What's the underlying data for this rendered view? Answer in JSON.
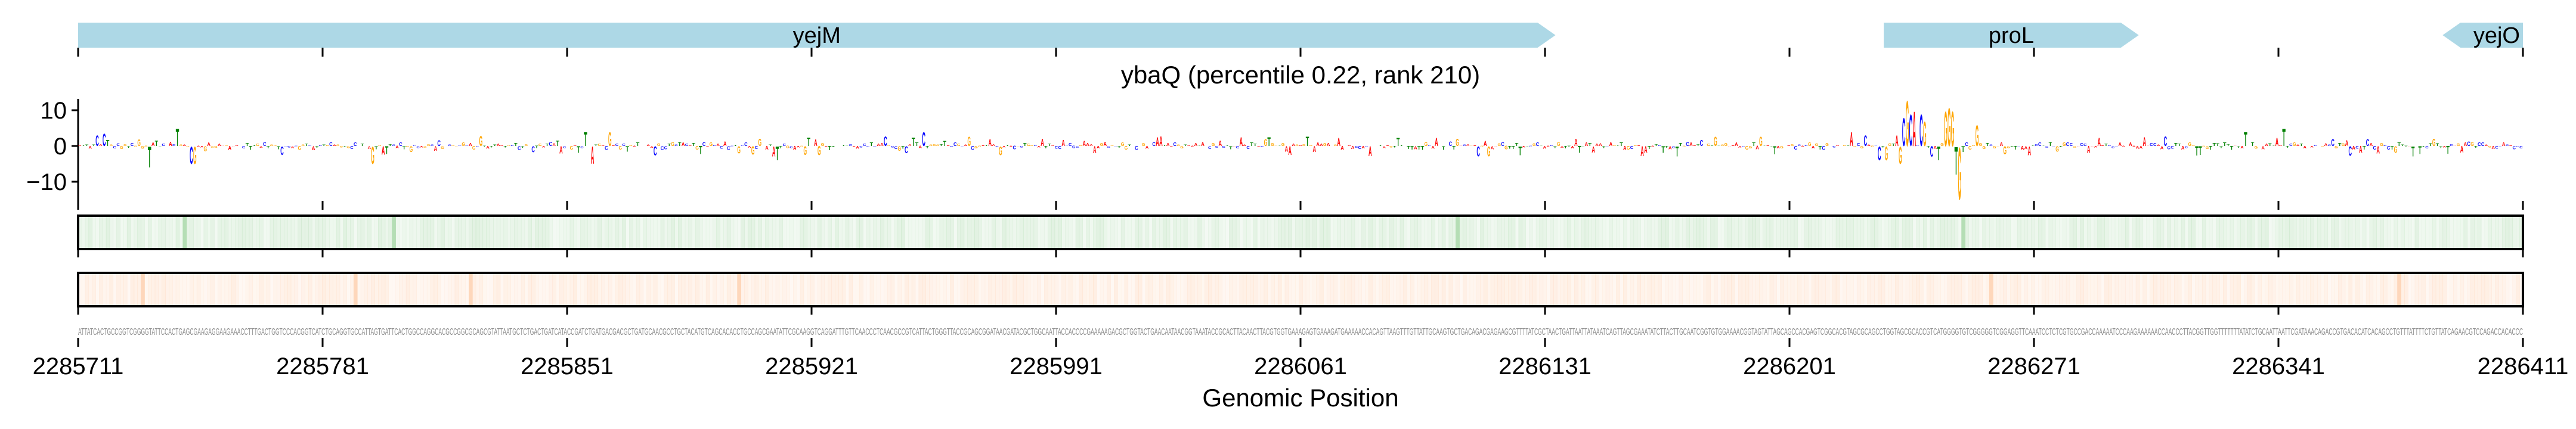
{
  "chart_data": {
    "type": "sequence-logo",
    "title": "ybaQ (percentile 0.22, rank 210)",
    "xlabel": "Genomic Position",
    "ylabel": "",
    "xlim": [
      2285711,
      2286411
    ],
    "ylim": [
      -15,
      13
    ],
    "x_ticks": [
      "2285711",
      "2285781",
      "2285851",
      "2285921",
      "2285991",
      "2286061",
      "2286131",
      "2286201",
      "2286271",
      "2286341",
      "2286411"
    ],
    "y_ticks": [
      {
        "label": "10",
        "value": 10
      },
      {
        "label": "0",
        "value": 0
      },
      {
        "label": "−10",
        "value": -10
      }
    ],
    "genes": [
      {
        "name": "yejM",
        "start": 2285711,
        "end": 2286134,
        "strand": "+"
      },
      {
        "name": "proL",
        "start": 2286228,
        "end": 2286301,
        "strand": "+"
      },
      {
        "name": "yejO",
        "start": 2286388,
        "end": 2286411,
        "strand": "-"
      }
    ],
    "sequence": "ATTATCACTGCCGGTCGGGGTATTCCACTGAGCGAAGAGGAAGAAACCTTTGACTGGTCCCACGGTCATCTGCAGGTGCCATTAGTGATTCACTGGCCAGGCACGCCGGCGCAGCGTATTAATGCTCTGACTGATCATACCGATCTGATGACGACGCTGATGCAACGCCTGCTACATGTCAGCACACCTGCCAGCGAATATTCGCAAGGTCAGGATTTGTTCAACCCTCAACGCCGTCATTACTGGGTTACCGCAGCGGATAACGATACGCTGGCAATTACCACCCCGAAAAAGACGCTGGTACTGAACAATAACGGTAAATACCGCACTTACAACTTACGTGGTGAAAGAGTGAAAGATGAAAAACCACAGTTAAGTTTGTTATTGCAAGTGCTGACAGACGAGAAGCGTTTTATCGCTAACTGATTAATTATAAATCAGTTAGCGAAATATCTTACTTGCAATCGGTGTGGAAAACGGTAGTATTAGCAGCCACGAGTCGGCACGTAGCGCAGCCTGGTAGCGCACCGTCATGGGGTGTCGGGGGTCGGAGGTTCAAATCCTCTCGTGCCGACCAAAAATCCCAAGAAAAAACCAACCCTTACGGTTGGTTTTTTTATATCTGCAATTAATTCGATAAACAGACCGTGACACATCACAGCCTGTTTATTTTCTGTTATCAGAACGTCCAGACCACACCC",
    "attribution_peaks": [
      {
        "offset": 5,
        "value": 3
      },
      {
        "offset": 7,
        "value": 3.5
      },
      {
        "offset": 20,
        "value": -6
      },
      {
        "offset": 28,
        "value": 5
      },
      {
        "offset": 32,
        "value": -5
      },
      {
        "offset": 33,
        "value": -5
      },
      {
        "offset": 84,
        "value": -5
      },
      {
        "offset": 145,
        "value": 4
      },
      {
        "offset": 147,
        "value": -5
      },
      {
        "offset": 152,
        "value": 4
      },
      {
        "offset": 200,
        "value": -4
      },
      {
        "offset": 242,
        "value": 4
      },
      {
        "offset": 508,
        "value": 4
      },
      {
        "offset": 512,
        "value": 3
      },
      {
        "offset": 516,
        "value": -4
      },
      {
        "offset": 518,
        "value": -4
      },
      {
        "offset": 521,
        "value": 3
      },
      {
        "offset": 522,
        "value": -5
      },
      {
        "offset": 523,
        "value": 8
      },
      {
        "offset": 524,
        "value": 13
      },
      {
        "offset": 525,
        "value": 9
      },
      {
        "offset": 526,
        "value": 10
      },
      {
        "offset": 528,
        "value": 9
      },
      {
        "offset": 529,
        "value": 7
      },
      {
        "offset": 531,
        "value": -3
      },
      {
        "offset": 533,
        "value": -4
      },
      {
        "offset": 535,
        "value": 10
      },
      {
        "offset": 536,
        "value": 11
      },
      {
        "offset": 537,
        "value": 10
      },
      {
        "offset": 538,
        "value": -8
      },
      {
        "offset": 539,
        "value": -15
      },
      {
        "offset": 544,
        "value": 6
      },
      {
        "offset": 621,
        "value": 4
      },
      {
        "offset": 632,
        "value": 5
      }
    ],
    "heatmap_top": {
      "color": "#2ca02c",
      "highlight_offsets": [
        30,
        90,
        395,
        540
      ]
    },
    "heatmap_bottom": {
      "color": "#fd8d3c",
      "highlight_offsets": [
        18,
        79,
        112,
        189,
        548,
        665
      ]
    },
    "base_colors": {
      "A": "#ff0000",
      "C": "#0000ff",
      "G": "#ffa500",
      "T": "#008000"
    },
    "gene_color": "#add8e6"
  }
}
